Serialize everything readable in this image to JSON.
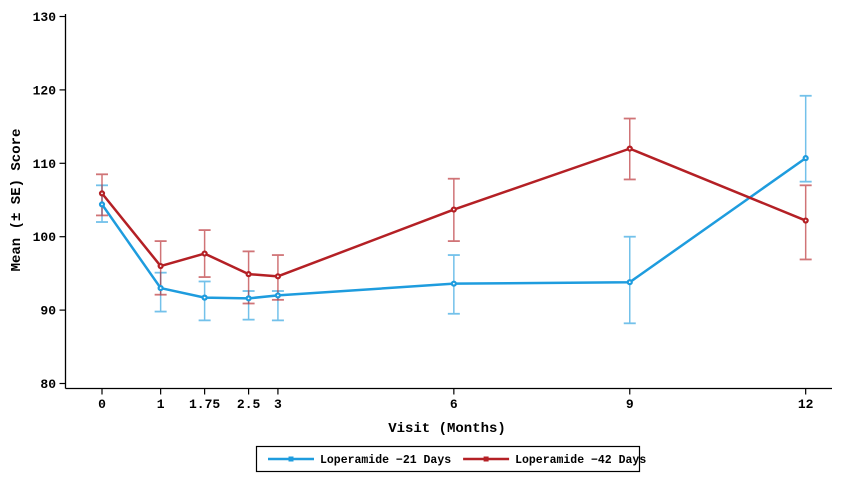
{
  "chart_data": {
    "type": "line",
    "title": "",
    "xlabel": "Visit (Months)",
    "ylabel": "Mean (± SE) Score",
    "x": [
      0,
      1,
      1.75,
      2.5,
      3,
      6,
      9,
      12
    ],
    "x_tick_labels": [
      "0",
      "1",
      "1.75",
      "2.5",
      "3",
      "6",
      "9",
      "12"
    ],
    "yticks": [
      80,
      90,
      100,
      110,
      120,
      130
    ],
    "ylim": [
      80,
      130
    ],
    "grid": false,
    "legend_position": "bottom-center-boxed",
    "error_bar_style": "vertical SE bars with caps, semi-transparent",
    "series": [
      {
        "name": "Loperamide −21 Days",
        "color": "#1E9CDE",
        "values": [
          104.4,
          93.0,
          91.7,
          91.6,
          92.0,
          93.6,
          93.8,
          110.7
        ],
        "err_lo": [
          102.0,
          89.8,
          88.6,
          88.7,
          88.6,
          89.5,
          88.2,
          107.5
        ],
        "err_hi": [
          107.0,
          95.1,
          93.9,
          92.6,
          92.6,
          97.5,
          100.0,
          119.2
        ]
      },
      {
        "name": "Loperamide −42 Days",
        "color": "#B42025",
        "values": [
          105.9,
          96.0,
          97.7,
          94.9,
          94.6,
          103.7,
          112.0,
          102.2
        ],
        "err_lo": [
          102.9,
          92.1,
          94.5,
          90.9,
          91.4,
          99.4,
          107.8,
          96.9
        ],
        "err_hi": [
          108.5,
          99.4,
          100.9,
          98.0,
          97.5,
          107.9,
          116.1,
          107.0
        ]
      }
    ]
  }
}
